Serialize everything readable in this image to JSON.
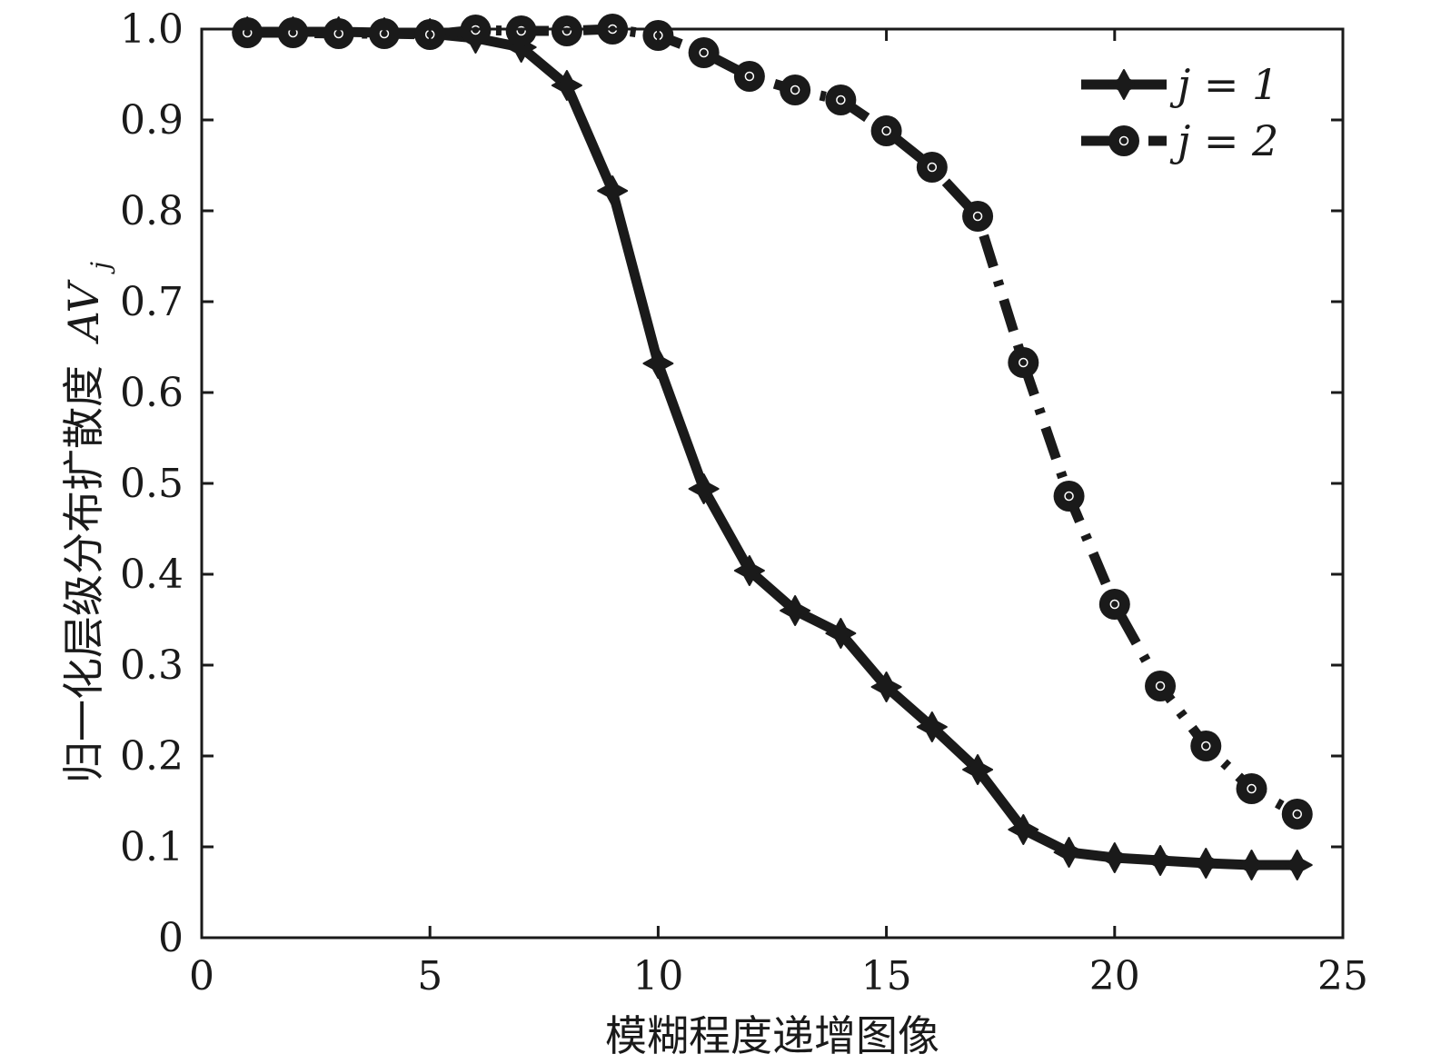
{
  "chart_data": {
    "type": "line",
    "xlabel": "模糊程度递增图像",
    "ylabel": "归一化层级分布扩散度",
    "ylabel_symbol": "AV",
    "ylabel_subscript": "j",
    "xlim": [
      0,
      25
    ],
    "ylim": [
      0,
      1.0
    ],
    "xticks": [
      "0",
      "5",
      "10",
      "15",
      "20",
      "25"
    ],
    "yticks": [
      "0",
      "0.1",
      "0.2",
      "0.3",
      "0.4",
      "0.5",
      "0.6",
      "0.7",
      "0.8",
      "0.9",
      "1.0"
    ],
    "grid": false,
    "legend_position": "top-right",
    "x": [
      1,
      2,
      3,
      4,
      5,
      6,
      7,
      8,
      9,
      10,
      11,
      12,
      13,
      14,
      15,
      16,
      17,
      18,
      19,
      20,
      21,
      22,
      23,
      24
    ],
    "series": [
      {
        "name": "j = 1",
        "style": "solid",
        "marker": "star",
        "color": "#1a1a1a",
        "values": [
          0.997,
          0.997,
          0.997,
          0.996,
          0.995,
          0.99,
          0.98,
          0.938,
          0.822,
          0.632,
          0.494,
          0.404,
          0.36,
          0.335,
          0.276,
          0.232,
          0.185,
          0.119,
          0.094,
          0.088,
          0.085,
          0.082,
          0.08,
          0.08
        ]
      },
      {
        "name": "j = 2",
        "style": "dashdot",
        "marker": "circle",
        "color": "#1a1a1a",
        "values": [
          0.996,
          0.996,
          0.995,
          0.995,
          0.994,
          0.999,
          0.998,
          0.998,
          1.0,
          0.993,
          0.974,
          0.948,
          0.933,
          0.922,
          0.888,
          0.848,
          0.794,
          0.633,
          0.486,
          0.367,
          0.277,
          0.211,
          0.164,
          0.136
        ]
      }
    ]
  }
}
